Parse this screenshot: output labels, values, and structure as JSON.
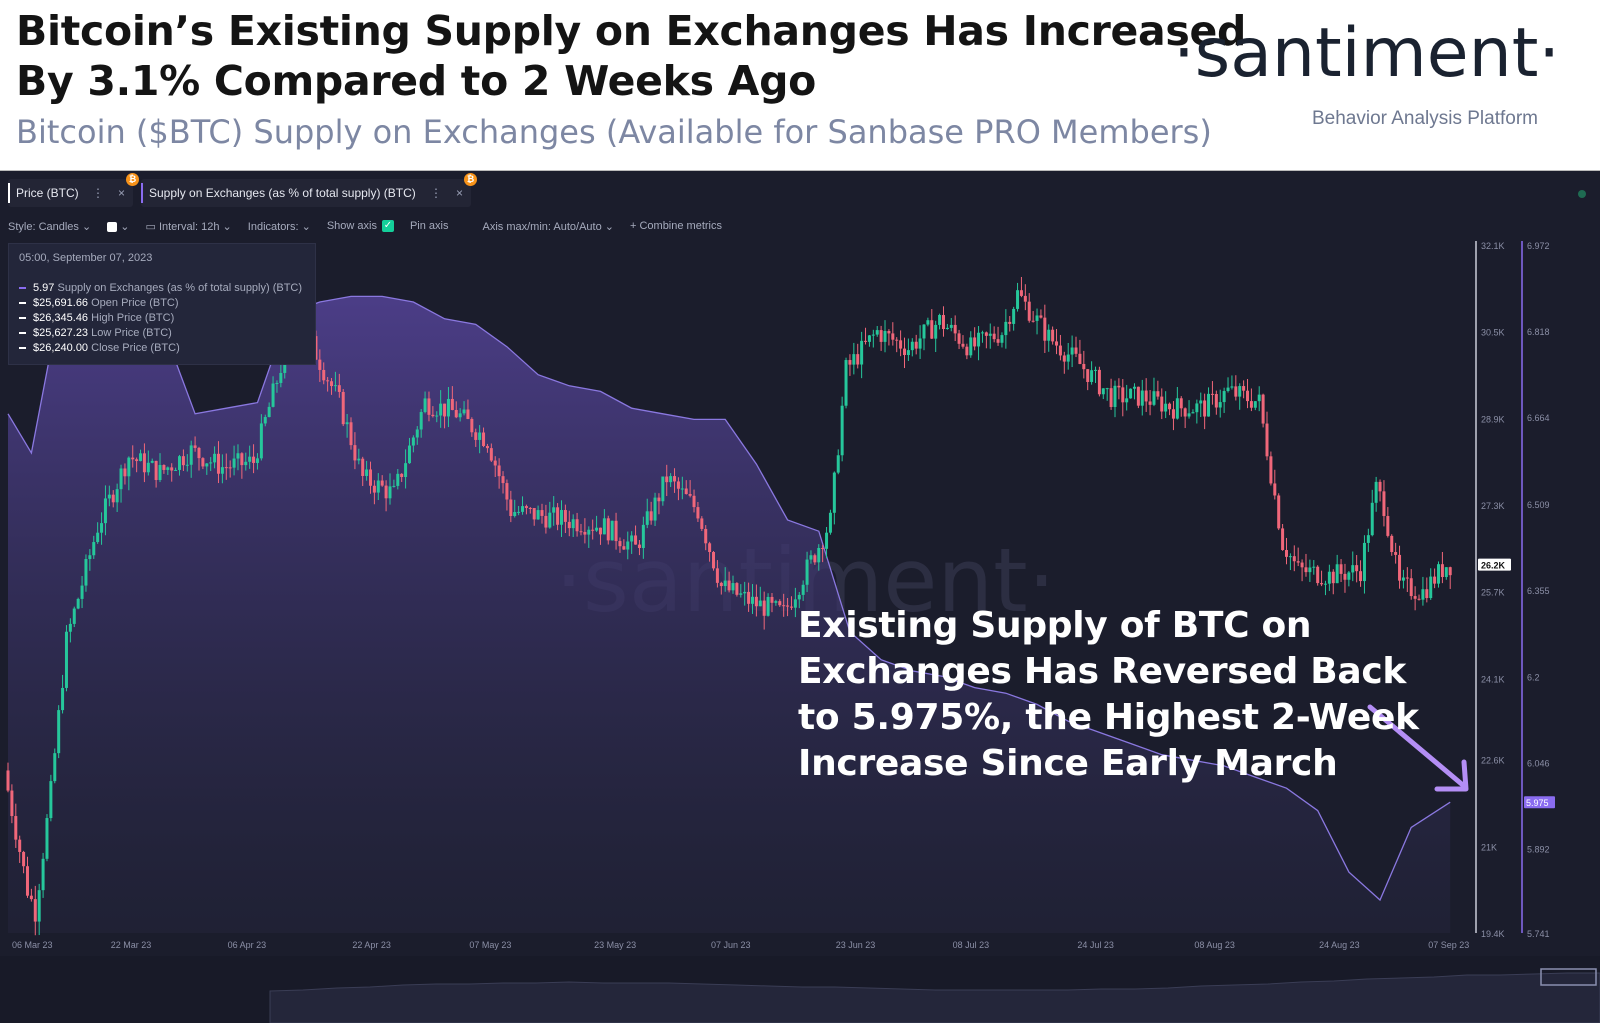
{
  "header": {
    "title": "Bitcoin’s Existing Supply on Exchanges Has Increased\nBy 3.1% Compared to 2 Weeks Ago",
    "subtitle": "Bitcoin ($BTC) Supply on Exchanges (Available for Sanbase PRO Members)",
    "logo": "·santiment·",
    "logo_sub": "Behavior Analysis Platform"
  },
  "tabs": [
    {
      "label": "Price (BTC)",
      "color": "#ffffff",
      "badge": "₿"
    },
    {
      "label": "Supply on Exchanges (as % of total supply) (BTC)",
      "color": "#8a6cf0",
      "badge": "₿"
    }
  ],
  "tab_controls": {
    "more": "⋮",
    "close": "×"
  },
  "toolbar": {
    "style": "Style: Candles",
    "interval": "Interval: 12h",
    "indicators": "Indicators:",
    "show_axis": "Show axis",
    "pin_axis": "Pin axis",
    "axis_minmax": "Axis max/min: Auto/Auto",
    "combine": "+ Combine metrics"
  },
  "tooltip": {
    "date": "05:00, September 07, 2023",
    "rows": [
      {
        "value": "5.97",
        "label": "Supply on Exchanges (as % of total supply) (BTC)",
        "color": "#8a6cf0"
      },
      {
        "value": "$25,691.66",
        "label": "Open Price (BTC)",
        "color": "#ffffff"
      },
      {
        "value": "$26,345.46",
        "label": "High Price (BTC)",
        "color": "#ffffff"
      },
      {
        "value": "$25,627.23",
        "label": "Low Price (BTC)",
        "color": "#ffffff"
      },
      {
        "value": "$26,240.00",
        "label": "Close Price (BTC)",
        "color": "#ffffff"
      }
    ]
  },
  "watermark": "·santiment·",
  "annotation": "Existing Supply of BTC on Exchanges Has Reversed Back to 5.975%, the Highest 2-Week Increase Since Early March",
  "colors": {
    "up": "#26c79b",
    "down": "#f0677a",
    "supply": "#8a6cf0",
    "bg": "#1b1d2c"
  },
  "chart_data": {
    "type": "line",
    "x_ticks": [
      "06 Mar 23",
      "22 Mar 23",
      "06 Apr 23",
      "22 Apr 23",
      "07 May 23",
      "23 May 23",
      "07 Jun 23",
      "23 Jun 23",
      "08 Jul 23",
      "24 Jul 23",
      "08 Aug 23",
      "24 Aug 23",
      "07 Sep 23"
    ],
    "price_axis": [
      "32.1K",
      "30.5K",
      "28.9K",
      "27.3K",
      "25.7K",
      "24.1K",
      "22.6K",
      "21K",
      "19.4K"
    ],
    "price_ylim": [
      19400,
      32100
    ],
    "supply_axis": [
      "6.972",
      "6.818",
      "6.664",
      "6.509",
      "6.355",
      "6.2",
      "6.046",
      "5.892",
      "5.741"
    ],
    "supply_ylim": [
      5.741,
      6.972
    ],
    "current_price_label": "26.2K",
    "current_supply_label": "5.975",
    "series": [
      {
        "name": "Supply on Exchanges (as % of total supply) (BTC)",
        "type": "area",
        "x": [
          "2023-03-06",
          "2023-03-09",
          "2023-03-12",
          "2023-03-15",
          "2023-03-18",
          "2023-03-22",
          "2023-03-26",
          "2023-03-30",
          "2023-04-03",
          "2023-04-07",
          "2023-04-11",
          "2023-04-15",
          "2023-04-19",
          "2023-04-23",
          "2023-04-27",
          "2023-05-01",
          "2023-05-05",
          "2023-05-09",
          "2023-05-13",
          "2023-05-17",
          "2023-05-21",
          "2023-05-25",
          "2023-05-29",
          "2023-06-02",
          "2023-06-06",
          "2023-06-10",
          "2023-06-14",
          "2023-06-18",
          "2023-06-22",
          "2023-06-26",
          "2023-06-30",
          "2023-07-04",
          "2023-07-08",
          "2023-07-12",
          "2023-07-16",
          "2023-07-20",
          "2023-07-24",
          "2023-07-28",
          "2023-08-01",
          "2023-08-05",
          "2023-08-09",
          "2023-08-13",
          "2023-08-17",
          "2023-08-21",
          "2023-08-25",
          "2023-08-29",
          "2023-09-02",
          "2023-09-07"
        ],
        "values": [
          6.67,
          6.6,
          6.82,
          6.82,
          6.82,
          6.82,
          6.82,
          6.67,
          6.68,
          6.69,
          6.85,
          6.87,
          6.88,
          6.88,
          6.87,
          6.84,
          6.83,
          6.79,
          6.74,
          6.72,
          6.71,
          6.68,
          6.67,
          6.66,
          6.66,
          6.58,
          6.48,
          6.46,
          6.28,
          6.23,
          6.21,
          6.2,
          6.18,
          6.17,
          6.15,
          6.12,
          6.1,
          6.08,
          6.06,
          6.05,
          6.04,
          6.02,
          6.0,
          5.96,
          5.85,
          5.8,
          5.93,
          5.975
        ]
      },
      {
        "name": "Price (BTC)",
        "type": "candles",
        "x": [
          "2023-03-06",
          "2023-03-09",
          "2023-03-10",
          "2023-03-12",
          "2023-03-14",
          "2023-03-18",
          "2023-03-22",
          "2023-03-26",
          "2023-03-30",
          "2023-04-03",
          "2023-04-07",
          "2023-04-11",
          "2023-04-14",
          "2023-04-18",
          "2023-04-21",
          "2023-04-25",
          "2023-04-29",
          "2023-05-03",
          "2023-05-07",
          "2023-05-10",
          "2023-05-14",
          "2023-05-18",
          "2023-05-22",
          "2023-05-26",
          "2023-05-30",
          "2023-06-03",
          "2023-06-06",
          "2023-06-10",
          "2023-06-14",
          "2023-06-18",
          "2023-06-20",
          "2023-06-22",
          "2023-06-26",
          "2023-06-30",
          "2023-07-04",
          "2023-07-08",
          "2023-07-12",
          "2023-07-14",
          "2023-07-18",
          "2023-07-22",
          "2023-07-26",
          "2023-07-30",
          "2023-08-03",
          "2023-08-07",
          "2023-08-10",
          "2023-08-14",
          "2023-08-17",
          "2023-08-19",
          "2023-08-23",
          "2023-08-27",
          "2023-08-29",
          "2023-08-30",
          "2023-09-01",
          "2023-09-04",
          "2023-09-07"
        ],
        "values": [
          22400,
          20200,
          19800,
          22000,
          24800,
          26900,
          28200,
          27900,
          28300,
          28000,
          28100,
          30100,
          30400,
          29200,
          27800,
          27500,
          29200,
          29000,
          28500,
          27200,
          27100,
          27000,
          26900,
          26500,
          27800,
          27200,
          25800,
          25500,
          25300,
          26400,
          27000,
          29800,
          30500,
          30200,
          30700,
          30200,
          30500,
          31200,
          30400,
          29900,
          29300,
          29300,
          29100,
          29100,
          29400,
          29200,
          26600,
          26100,
          26000,
          26100,
          27600,
          27300,
          25800,
          25700,
          26200
        ]
      }
    ]
  }
}
